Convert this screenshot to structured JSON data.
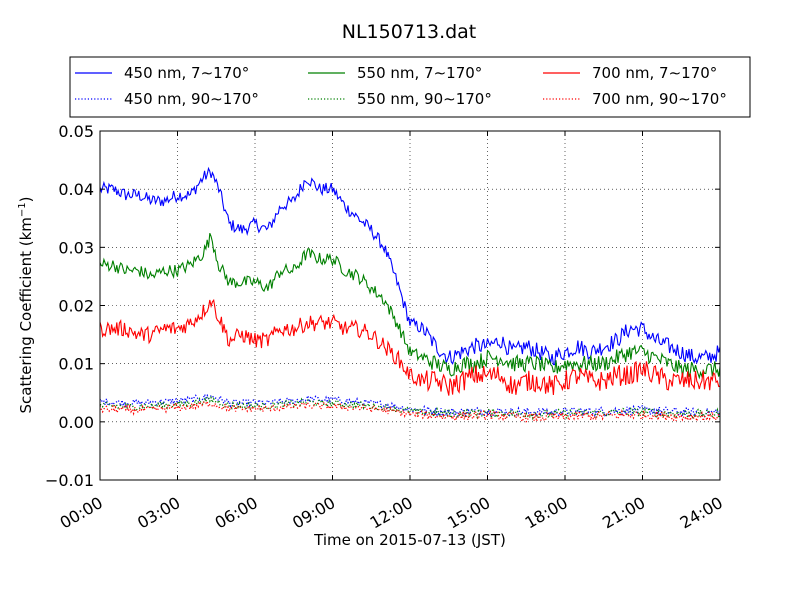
{
  "chart_data": {
    "type": "line",
    "title": "NL150713.dat",
    "xlabel": "Time on 2015-07-13 (JST)",
    "ylabel_main": "Scattering Coefficient (km",
    "ylabel_sup": "−1",
    "ylabel_end": ")",
    "xlim": [
      "00:00",
      "24:00"
    ],
    "ylim": [
      -0.01,
      0.05
    ],
    "grid": true,
    "legend_position": "top (above plot)",
    "x_ticks": [
      "00:00",
      "03:00",
      "06:00",
      "09:00",
      "12:00",
      "15:00",
      "18:00",
      "21:00",
      "24:00"
    ],
    "y_ticks": [
      "−0.01",
      "0.00",
      "0.01",
      "0.02",
      "0.03",
      "0.04",
      "0.05"
    ],
    "x_hours": [
      0,
      0.5,
      1,
      1.5,
      2,
      2.5,
      3,
      3.5,
      4,
      4.3,
      4.6,
      5,
      5.5,
      6,
      6.5,
      7,
      7.5,
      8,
      8.5,
      9,
      9.5,
      10,
      10.5,
      11,
      11.5,
      12,
      12.5,
      13,
      13.5,
      14,
      14.5,
      15,
      15.5,
      16,
      16.5,
      17,
      17.5,
      18,
      18.5,
      19,
      19.5,
      20,
      20.5,
      21,
      21.5,
      22,
      22.5,
      23,
      23.5,
      24
    ],
    "series": [
      {
        "name": "450 nm, 7∼170°",
        "color": "#0000ff",
        "style": "solid",
        "values": [
          0.04,
          0.04,
          0.039,
          0.039,
          0.038,
          0.038,
          0.039,
          0.039,
          0.042,
          0.043,
          0.04,
          0.034,
          0.033,
          0.034,
          0.033,
          0.037,
          0.038,
          0.042,
          0.04,
          0.04,
          0.037,
          0.035,
          0.033,
          0.03,
          0.024,
          0.017,
          0.016,
          0.013,
          0.011,
          0.012,
          0.013,
          0.013,
          0.014,
          0.012,
          0.013,
          0.012,
          0.011,
          0.012,
          0.013,
          0.012,
          0.013,
          0.014,
          0.016,
          0.016,
          0.014,
          0.013,
          0.012,
          0.011,
          0.011,
          0.012
        ]
      },
      {
        "name": "450 nm, 90∼170°",
        "color": "#0000ff",
        "style": "dotted",
        "values": [
          0.0035,
          0.0034,
          0.0033,
          0.0032,
          0.0033,
          0.0035,
          0.0036,
          0.0038,
          0.0042,
          0.0044,
          0.004,
          0.0033,
          0.0032,
          0.0033,
          0.0032,
          0.0035,
          0.0036,
          0.004,
          0.0038,
          0.0038,
          0.0036,
          0.0034,
          0.0032,
          0.003,
          0.0026,
          0.0022,
          0.002,
          0.0018,
          0.0017,
          0.0017,
          0.0018,
          0.0018,
          0.0018,
          0.0017,
          0.0017,
          0.0017,
          0.0016,
          0.0017,
          0.0018,
          0.0018,
          0.0018,
          0.0019,
          0.002,
          0.002,
          0.0019,
          0.0018,
          0.0017,
          0.0016,
          0.0016,
          0.0017
        ]
      },
      {
        "name": "550 nm, 7∼170°",
        "color": "#008000",
        "style": "solid",
        "values": [
          0.027,
          0.027,
          0.026,
          0.026,
          0.025,
          0.026,
          0.026,
          0.027,
          0.029,
          0.032,
          0.027,
          0.024,
          0.024,
          0.024,
          0.023,
          0.026,
          0.026,
          0.029,
          0.028,
          0.028,
          0.026,
          0.025,
          0.023,
          0.021,
          0.017,
          0.012,
          0.011,
          0.01,
          0.009,
          0.01,
          0.01,
          0.011,
          0.011,
          0.01,
          0.01,
          0.01,
          0.009,
          0.01,
          0.01,
          0.01,
          0.01,
          0.011,
          0.012,
          0.012,
          0.011,
          0.01,
          0.009,
          0.009,
          0.009,
          0.009
        ]
      },
      {
        "name": "550 nm, 90∼170°",
        "color": "#008000",
        "style": "dotted",
        "values": [
          0.0028,
          0.0027,
          0.0026,
          0.0026,
          0.0027,
          0.0029,
          0.003,
          0.0032,
          0.0036,
          0.0038,
          0.0034,
          0.0028,
          0.0027,
          0.0028,
          0.0027,
          0.003,
          0.0031,
          0.0034,
          0.0032,
          0.0032,
          0.003,
          0.0029,
          0.0027,
          0.0025,
          0.0022,
          0.0018,
          0.0017,
          0.0015,
          0.0014,
          0.0014,
          0.0015,
          0.0015,
          0.0015,
          0.0014,
          0.0014,
          0.0014,
          0.0013,
          0.0014,
          0.0015,
          0.0015,
          0.0015,
          0.0016,
          0.0017,
          0.0017,
          0.0016,
          0.0015,
          0.0014,
          0.0013,
          0.0013,
          0.0014
        ]
      },
      {
        "name": "700 nm, 7∼170°",
        "color": "#ff0000",
        "style": "solid",
        "values": [
          0.016,
          0.016,
          0.016,
          0.015,
          0.015,
          0.016,
          0.016,
          0.017,
          0.019,
          0.021,
          0.018,
          0.014,
          0.015,
          0.014,
          0.014,
          0.016,
          0.016,
          0.017,
          0.017,
          0.017,
          0.016,
          0.016,
          0.015,
          0.013,
          0.011,
          0.008,
          0.007,
          0.007,
          0.006,
          0.007,
          0.008,
          0.008,
          0.008,
          0.006,
          0.007,
          0.007,
          0.006,
          0.007,
          0.008,
          0.007,
          0.007,
          0.008,
          0.008,
          0.009,
          0.008,
          0.007,
          0.007,
          0.007,
          0.007,
          0.007
        ]
      },
      {
        "name": "700 nm, 90∼170°",
        "color": "#ff0000",
        "style": "dotted",
        "values": [
          0.0022,
          0.0021,
          0.0021,
          0.002,
          0.0021,
          0.0023,
          0.0024,
          0.0026,
          0.003,
          0.0032,
          0.0028,
          0.0023,
          0.0022,
          0.0023,
          0.0022,
          0.0025,
          0.0026,
          0.0028,
          0.0027,
          0.0027,
          0.0025,
          0.0024,
          0.0022,
          0.002,
          0.0017,
          0.0013,
          0.0012,
          0.0011,
          0.0009,
          0.001,
          0.0011,
          0.0011,
          0.0011,
          0.0009,
          0.0008,
          0.0007,
          0.0008,
          0.0009,
          0.001,
          0.001,
          0.001,
          0.0011,
          0.0012,
          0.0012,
          0.0011,
          0.001,
          0.0009,
          0.0009,
          0.0009,
          0.001
        ]
      }
    ]
  }
}
